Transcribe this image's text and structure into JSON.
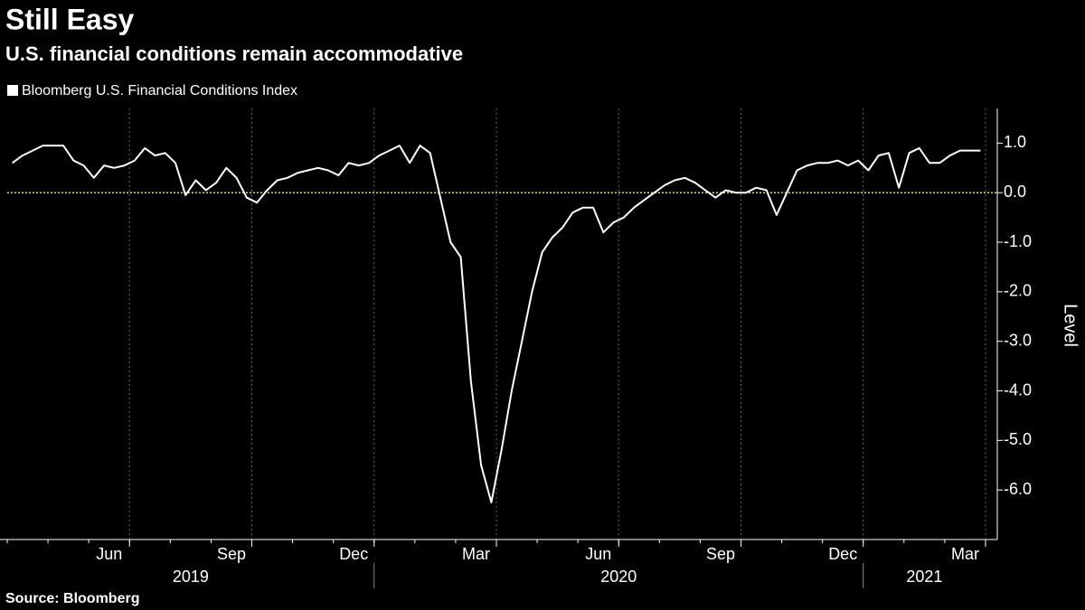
{
  "chart_data": {
    "type": "line",
    "title": "Still Easy",
    "subtitle": "U.S. financial conditions remain accommodative",
    "source": "Source: Bloomberg",
    "y_label": "Level",
    "x": [
      "2019-04",
      "2019-04",
      "2019-04",
      "2019-04",
      "2019-05",
      "2019-05",
      "2019-05",
      "2019-05",
      "2019-06",
      "2019-06",
      "2019-06",
      "2019-06",
      "2019-07",
      "2019-07",
      "2019-07",
      "2019-07",
      "2019-08",
      "2019-08",
      "2019-08",
      "2019-08",
      "2019-09",
      "2019-09",
      "2019-09",
      "2019-09",
      "2019-10",
      "2019-10",
      "2019-10",
      "2019-10",
      "2019-11",
      "2019-11",
      "2019-11",
      "2019-11",
      "2019-12",
      "2019-12",
      "2019-12",
      "2019-12",
      "2020-01",
      "2020-01",
      "2020-01",
      "2020-01",
      "2020-02",
      "2020-02",
      "2020-02",
      "2020-02",
      "2020-03",
      "2020-03",
      "2020-03",
      "2020-03",
      "2020-04",
      "2020-04",
      "2020-04",
      "2020-04",
      "2020-05",
      "2020-05",
      "2020-05",
      "2020-05",
      "2020-06",
      "2020-06",
      "2020-06",
      "2020-06",
      "2020-07",
      "2020-07",
      "2020-07",
      "2020-07",
      "2020-08",
      "2020-08",
      "2020-08",
      "2020-08",
      "2020-09",
      "2020-09",
      "2020-09",
      "2020-09",
      "2020-10",
      "2020-10",
      "2020-10",
      "2020-10",
      "2020-11",
      "2020-11",
      "2020-11",
      "2020-11",
      "2020-12",
      "2020-12",
      "2020-12",
      "2020-12",
      "2021-01",
      "2021-01",
      "2021-01",
      "2021-01",
      "2021-02",
      "2021-02",
      "2021-02",
      "2021-02",
      "2021-03",
      "2021-03",
      "2021-03",
      "2021-03"
    ],
    "series": [
      {
        "name": "Bloomberg U.S. Financial Conditions Index",
        "color": "#ffffff",
        "values": [
          0.6,
          0.75,
          0.85,
          0.95,
          0.95,
          0.95,
          0.65,
          0.55,
          0.3,
          0.55,
          0.5,
          0.55,
          0.65,
          0.9,
          0.75,
          0.8,
          0.6,
          -0.05,
          0.25,
          0.05,
          0.2,
          0.5,
          0.3,
          -0.1,
          -0.2,
          0.05,
          0.25,
          0.3,
          0.4,
          0.45,
          0.5,
          0.45,
          0.35,
          0.6,
          0.55,
          0.6,
          0.75,
          0.85,
          0.95,
          0.6,
          0.95,
          0.8,
          -0.1,
          -1.0,
          -1.3,
          -3.8,
          -5.5,
          -6.25,
          -5.2,
          -4.0,
          -3.0,
          -2.0,
          -1.2,
          -0.9,
          -0.7,
          -0.4,
          -0.3,
          -0.3,
          -0.8,
          -0.6,
          -0.5,
          -0.3,
          -0.15,
          0.0,
          0.15,
          0.25,
          0.3,
          0.2,
          0.05,
          -0.1,
          0.05,
          0.0,
          0.0,
          0.1,
          0.05,
          -0.45,
          0.0,
          0.45,
          0.55,
          0.6,
          0.6,
          0.65,
          0.55,
          0.65,
          0.45,
          0.75,
          0.8,
          0.1,
          0.8,
          0.9,
          0.6,
          0.6,
          0.75,
          0.85,
          0.85,
          0.85
        ]
      }
    ],
    "ylim": [
      -7.0,
      1.7
    ],
    "yticks": [
      {
        "value": 1,
        "label": "1.0"
      },
      {
        "value": 0,
        "label": "0.0"
      },
      {
        "value": -1,
        "label": "-1.0"
      },
      {
        "value": -2,
        "label": "-2.0"
      },
      {
        "value": -3,
        "label": "-3.0"
      },
      {
        "value": -4,
        "label": "-4.0"
      },
      {
        "value": -5,
        "label": "-5.0"
      },
      {
        "value": -6,
        "label": "-6.0"
      }
    ],
    "xticks": [
      {
        "value": "2019-06",
        "label": "Jun"
      },
      {
        "value": "2019-09",
        "label": "Sep"
      },
      {
        "value": "2019-12",
        "label": "Dec"
      },
      {
        "value": "2020-03",
        "label": "Mar"
      },
      {
        "value": "2020-06",
        "label": "Jun"
      },
      {
        "value": "2020-09",
        "label": "Sep"
      },
      {
        "value": "2020-12",
        "label": "Dec"
      },
      {
        "value": "2021-03",
        "label": "Mar"
      }
    ],
    "years": [
      "2019",
      "2020",
      "2021"
    ],
    "reference_line": {
      "value": 0,
      "color": "#e8d85a"
    },
    "grid": true
  }
}
